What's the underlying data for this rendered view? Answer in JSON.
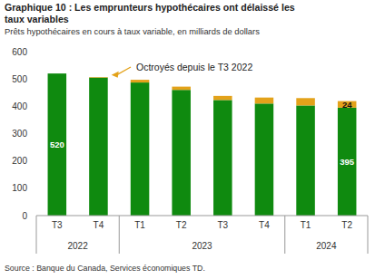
{
  "chart_data": {
    "type": "bar",
    "stacked": true,
    "title": "Graphique 10 : Les emprunteurs hypothécaires ont délaissé les taux variables",
    "subtitle": "Prêts hypothécaires en cours à taux variable, en milliards de dollars",
    "source": "Source : Banque du Canada, Services économiques TD.",
    "categories": [
      "T3",
      "T4",
      "T1",
      "T2",
      "T3",
      "T4",
      "T1",
      "T2"
    ],
    "groups": [
      {
        "label": "2022",
        "count": 2
      },
      {
        "label": "2023",
        "count": 4
      },
      {
        "label": "2024",
        "count": 2
      }
    ],
    "series": [
      {
        "color": "#0f8a0f",
        "values": [
          520,
          505,
          487,
          460,
          423,
          410,
          403,
          395
        ],
        "value_labels": [
          "520",
          null,
          null,
          null,
          null,
          null,
          null,
          "395"
        ]
      },
      {
        "color": "#e3a21a",
        "values": [
          0,
          2,
          10,
          12,
          15,
          22,
          27,
          24
        ],
        "value_labels": [
          null,
          null,
          null,
          null,
          null,
          null,
          null,
          "24"
        ]
      }
    ],
    "annotations": [
      {
        "text": "Octroyés depuis le T3 2022"
      }
    ],
    "data_labels": true,
    "grid": false,
    "ylim": [
      0,
      600
    ],
    "yticks": [
      0,
      100,
      200,
      300,
      400,
      500,
      600
    ]
  }
}
